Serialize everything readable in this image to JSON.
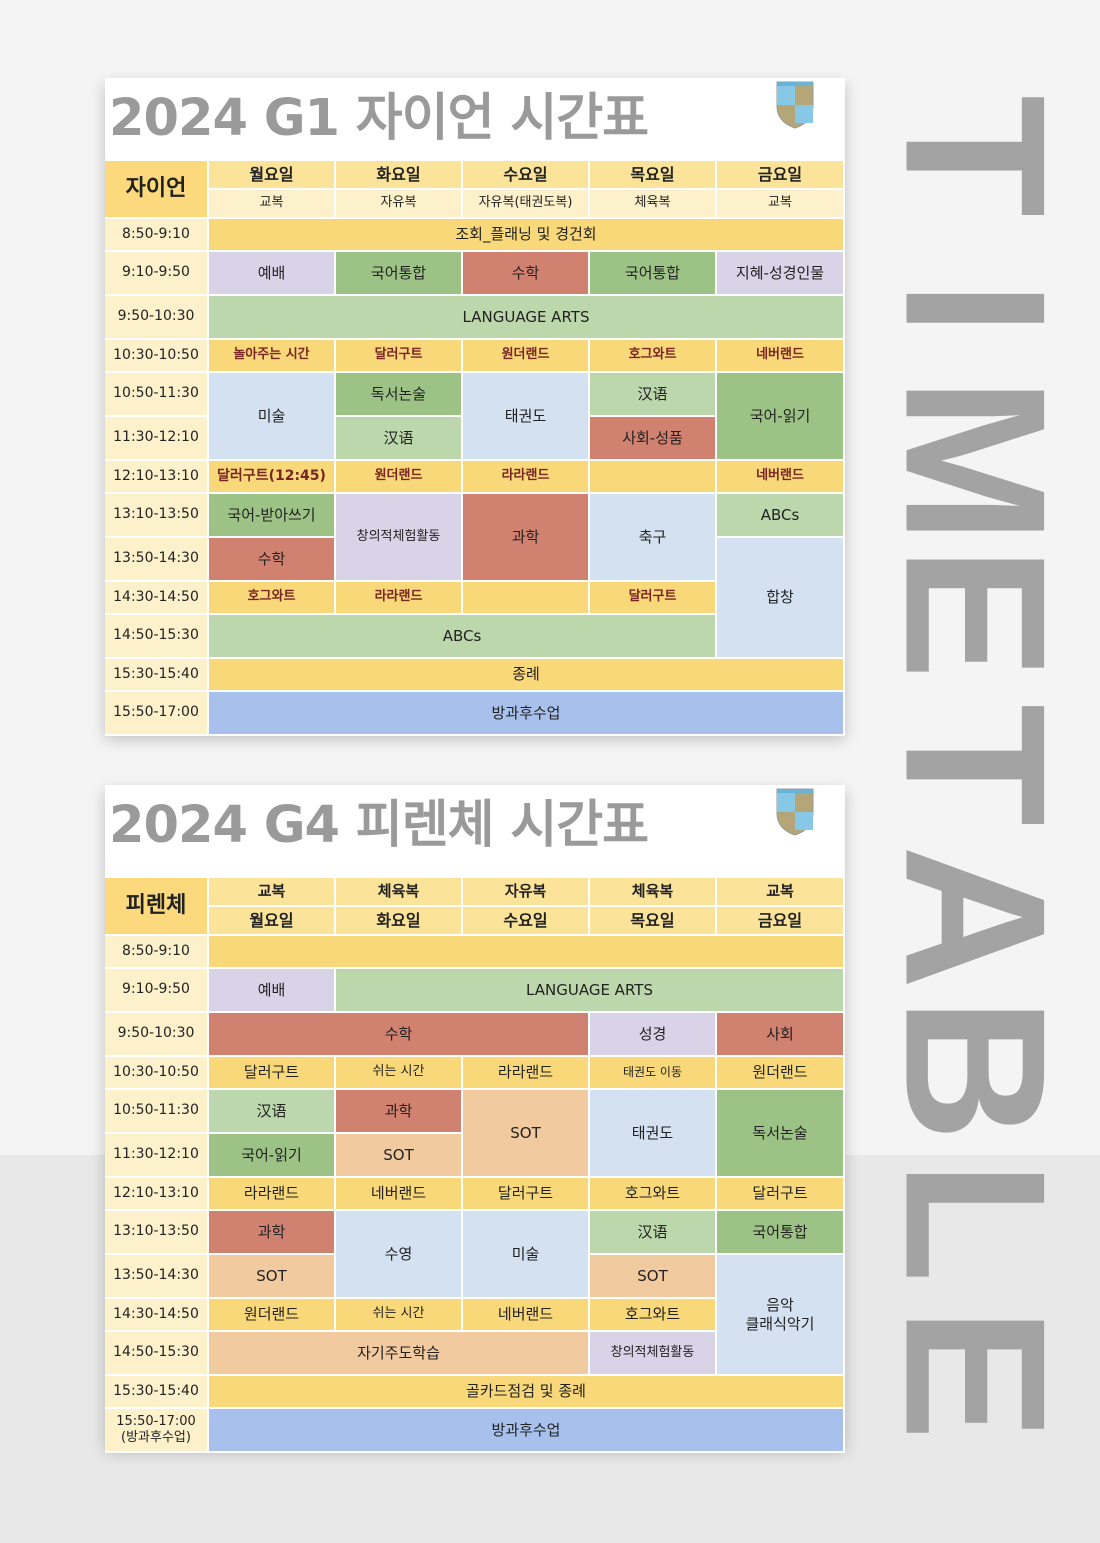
{
  "side_title": "TIMETABLE",
  "colors": {
    "yellow": "#f8d878",
    "green": "#bcd7ab",
    "dark_green": "#9cc385",
    "red": "#d18170",
    "lavender": "#d9d3e7",
    "light_blue": "#d3e1f0",
    "blue": "#a8c1ec",
    "peach": "#f1caa0"
  },
  "g1": {
    "title": "2024 G1 자이언 시간표",
    "class_name": "자이언",
    "days": [
      "월요일",
      "화요일",
      "수요일",
      "목요일",
      "금요일"
    ],
    "uniforms": [
      "교복",
      "자유복",
      "자유복(태권도복)",
      "체육복",
      "교복"
    ],
    "times": [
      "8:50-9:10",
      "9:10-9:50",
      "9:50-10:30",
      "10:30-10:50",
      "10:50-11:30",
      "11:30-12:10",
      "12:10-13:10",
      "13:10-13:50",
      "13:50-14:30",
      "14:30-14:50",
      "14:50-15:30",
      "15:30-15:40",
      "15:50-17:00"
    ],
    "cells": [
      "조회_플래닝 및 경건회",
      "예배",
      "국어통합",
      "수학",
      "국어통합",
      "지혜-성경인물",
      "LANGUAGE ARTS",
      "놀아주는 시간",
      "달러구트",
      "원더랜드",
      "호그와트",
      "네버랜드",
      "미술",
      "독서논술",
      "태권도",
      "汉语",
      "국어-읽기",
      "汉语",
      "사회-성품",
      "달러구트(12:45)",
      "원더랜드",
      "라라랜드",
      "",
      "네버랜드",
      "국어-받아쓰기",
      "창의적체험활동",
      "과학",
      "축구",
      "ABCs",
      "수학",
      "합창",
      "호그와트",
      "라라랜드",
      "",
      "달러구트",
      "ABCs",
      "종례",
      "방과후수업"
    ]
  },
  "g4": {
    "title": "2024 G4 피렌체 시간표",
    "class_name": "피렌체",
    "uniforms": [
      "교복",
      "체육복",
      "자유복",
      "체육복",
      "교복"
    ],
    "days": [
      "월요일",
      "화요일",
      "수요일",
      "목요일",
      "금요일"
    ],
    "times": [
      "8:50-9:10",
      "9:10-9:50",
      "9:50-10:30",
      "10:30-10:50",
      "10:50-11:30",
      "11:30-12:10",
      "12:10-13:10",
      "13:10-13:50",
      "13:50-14:30",
      "14:30-14:50",
      "14:50-15:30",
      "15:30-15:40",
      "15:50-17:00\n(방과후수업)"
    ],
    "cells": [
      "",
      "예배",
      "LANGUAGE ARTS",
      "수학",
      "성경",
      "사회",
      "달러구트",
      "쉬는 시간",
      "라라랜드",
      "태권도 이동",
      "원더랜드",
      "汉语",
      "과학",
      "SOT",
      "태권도",
      "독서논술",
      "국어-읽기",
      "SOT",
      "라라랜드",
      "네버랜드",
      "달러구트",
      "호그와트",
      "달러구트",
      "과학",
      "수영",
      "미술",
      "汉语",
      "국어통합",
      "SOT",
      "SOT",
      "음악\n클래식악기",
      "원더랜드",
      "쉬는 시간",
      "네버랜드",
      "호그와트",
      "자기주도학습",
      "창의적체험활동",
      "골카드점검 및 종례",
      "방과후수업"
    ]
  }
}
